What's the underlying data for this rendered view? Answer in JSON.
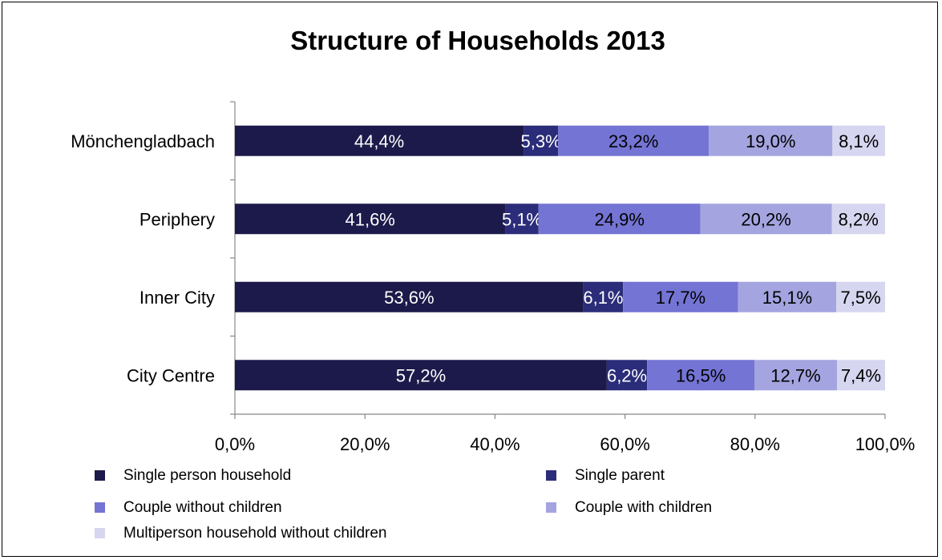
{
  "chart_data": {
    "type": "bar",
    "orientation": "horizontal",
    "stacked": true,
    "title": "Structure of Households 2013",
    "categories": [
      "Mönchengladbach",
      "Periphery",
      "Inner City",
      "City Centre"
    ],
    "series": [
      {
        "name": "Single person household",
        "color": "#1c1a4a",
        "values": [
          44.4,
          41.6,
          53.6,
          57.2
        ],
        "labels": [
          "44,4%",
          "41,6%",
          "53,6%",
          "57,2%"
        ],
        "label_color": "#ffffff"
      },
      {
        "name": "Single parent",
        "color": "#2b2d7a",
        "values": [
          5.3,
          5.1,
          6.1,
          6.2
        ],
        "labels": [
          "5,3%",
          "5,1%",
          "6,1%",
          "6,2%"
        ],
        "label_color": "#ffffff"
      },
      {
        "name": "Couple without children",
        "color": "#7474d4",
        "values": [
          23.2,
          24.9,
          17.7,
          16.5
        ],
        "labels": [
          "23,2%",
          "24,9%",
          "17,7%",
          "16,5%"
        ],
        "label_color": "#000000"
      },
      {
        "name": "Couple with children",
        "color": "#a4a4e0",
        "values": [
          19.0,
          20.2,
          15.1,
          12.7
        ],
        "labels": [
          "19,0%",
          "20,2%",
          "15,1%",
          "12,7%"
        ],
        "label_color": "#000000"
      },
      {
        "name": "Multiperson household without children",
        "color": "#d6d6f0",
        "values": [
          8.1,
          8.2,
          7.5,
          7.4
        ],
        "labels": [
          "8,1%",
          "8,2%",
          "7,5%",
          "7,4%"
        ],
        "label_color": "#000000"
      }
    ],
    "xlim": [
      0,
      100
    ],
    "x_ticks": [
      0,
      20,
      40,
      60,
      80,
      100
    ],
    "x_tick_labels": [
      "0,0%",
      "20,0%",
      "40,0%",
      "60,0%",
      "80,0%",
      "100,0%"
    ],
    "xlabel": "",
    "ylabel": "",
    "grid": false,
    "legend_position": "bottom"
  }
}
